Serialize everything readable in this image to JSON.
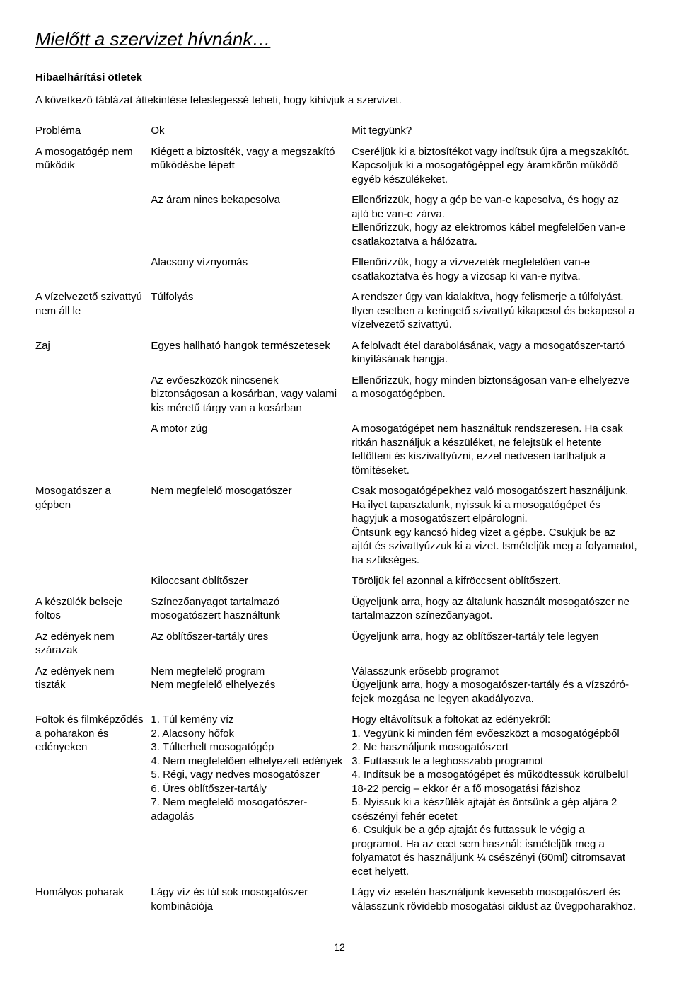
{
  "title": "Mielőtt a szervizet hívnánk…",
  "subheading": "Hibaelhárítási ötletek",
  "intro": "A következő táblázat áttekintése feleslegessé teheti, hogy kihívjuk a szervizet.",
  "headers": {
    "problem": "Probléma",
    "cause": "Ok",
    "action": "Mit tegyünk?"
  },
  "rows": [
    {
      "problem": "A mosogatógép nem működik",
      "cause": "Kiégett a biztosíték, vagy a megszakító működésbe lépett",
      "action": "Cseréljük ki a biztosítékot vagy indítsuk újra a megszakítót. Kapcsoljuk ki a mosogatógéppel egy áramkörön működő egyéb készülékeket."
    },
    {
      "problem": "",
      "cause": "Az áram nincs bekapcsolva",
      "action": "Ellenőrizzük, hogy a gép be van-e kapcsolva, és hogy az ajtó be van-e zárva.\nEllenőrizzük, hogy az elektromos kábel megfelelően van-e csatlakoztatva a hálózatra."
    },
    {
      "problem": "",
      "cause": "Alacsony víznyomás",
      "action": "Ellenőrizzük, hogy a vízvezeték megfelelően van-e csatlakoztatva és hogy a vízcsap ki van-e nyitva."
    },
    {
      "problem": "A vízelvezető szivattyú nem áll le",
      "cause": "Túlfolyás",
      "action": "A rendszer úgy van kialakítva, hogy felismerje a túlfolyást. Ilyen esetben a keringető szivattyú kikapcsol és bekapcsol a vízelvezető szivattyú."
    },
    {
      "problem": "Zaj",
      "cause": "Egyes hallható hangok természetesek",
      "action": "A felolvadt étel darabolásának, vagy a mosogatószer-tartó kinyílásának hangja."
    },
    {
      "problem": "",
      "cause": "Az evőeszközök nincsenek biztonságosan a kosárban, vagy valami kis méretű tárgy van a kosárban",
      "action": "Ellenőrizzük, hogy minden biztonságosan van-e elhelyezve a mosogatógépben."
    },
    {
      "problem": "",
      "cause": "A motor zúg",
      "action": "A mosogatógépet nem használtuk rendszeresen. Ha csak ritkán használjuk a készüléket, ne felejtsük el hetente feltölteni és kiszivattyúzni, ezzel nedvesen tarthatjuk a tömítéseket."
    },
    {
      "problem": "Mosogatószer a gépben",
      "cause": "Nem megfelelő mosogatószer",
      "action": "Csak mosogatógépekhez való mosogatószert használjunk.\nHa ilyet tapasztalunk, nyissuk ki a mosogatógépet és hagyjuk a mosogatószert elpárologni.\nÖntsünk egy kancsó hideg vizet a gépbe. Csukjuk be az ajtót és szivattyúzzuk ki a vizet. Ismételjük meg a folyamatot, ha szükséges."
    },
    {
      "problem": "",
      "cause": "Kiloccsant öblítőszer",
      "action": "Töröljük fel azonnal a kifröccsent öblítőszert."
    },
    {
      "problem": "A készülék belseje foltos",
      "cause": "Színezőanyagot tartalmazó mosogatószert használtunk",
      "action": "Ügyeljünk arra, hogy az általunk használt mosogatószer ne tartalmazzon színezőanyagot."
    },
    {
      "problem": "Az edények nem szárazak",
      "cause": "Az öblítőszer-tartály üres",
      "action": "Ügyeljünk arra, hogy az öblítőszer-tartály tele legyen"
    },
    {
      "problem": "Az edények nem tiszták",
      "cause": "Nem megfelelő program\nNem megfelelő elhelyezés",
      "action": "Válasszunk erősebb programot\nÜgyeljünk arra, hogy a mosogatószer-tartály és a vízszóró-fejek mozgása ne legyen akadályozva."
    },
    {
      "problem": "Foltok és filmképződés a poharakon és edényeken",
      "cause": "1. Túl kemény víz\n2. Alacsony hőfok\n3. Túlterhelt mosogatógép\n4. Nem megfelelően elhelyezett edények\n5. Régi, vagy nedves mosogatószer\n6. Üres öblítőszer-tartály\n7. Nem megfelelő mosogatószer-adagolás",
      "action": "Hogy eltávolítsuk a foltokat az edényekről:\n1. Vegyünk ki minden fém evőeszközt a mosogatógépből\n2. Ne használjunk mosogatószert\n3. Futtassuk le a leghosszabb programot\n4. Indítsuk be a mosogatógépet és működtessük körülbelül 18-22 percig – ekkor ér a fő mosogatási fázishoz\n5. Nyissuk ki a készülék ajtaját és öntsünk a gép aljára 2 csészényi fehér ecetet\n6. Csukjuk be a gép ajtaját és futtassuk le végig a programot. Ha az ecet sem használ: ismételjük meg a folyamatot és használjunk ¼ csészényi (60ml) citromsavat ecet helyett."
    },
    {
      "problem": "Homályos poharak",
      "cause": "Lágy víz és túl sok mosogatószer kombinációja",
      "action": "Lágy víz esetén használjunk kevesebb mosogatószert és válasszunk rövidebb mosogatási ciklust az üvegpoharakhoz."
    }
  ],
  "pageNumber": "12"
}
